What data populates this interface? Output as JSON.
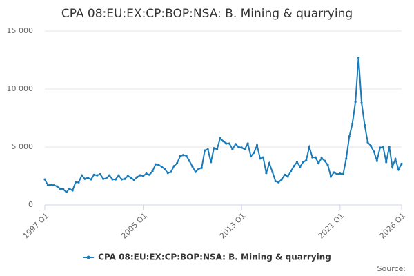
{
  "chart_data": {
    "type": "line",
    "title": "CPA 08:EU:EX:CP:BOP:NSA: B. Mining & quarrying",
    "source": "Source:",
    "categories": [
      "1997 Q1",
      null,
      null,
      null,
      null,
      null,
      null,
      null,
      null,
      null,
      null,
      null,
      null,
      null,
      null,
      null,
      null,
      null,
      null,
      null,
      null,
      null,
      null,
      null,
      null,
      null,
      null,
      null,
      null,
      null,
      null,
      null,
      "2005 Q1",
      null,
      null,
      null,
      null,
      null,
      null,
      null,
      null,
      null,
      null,
      null,
      null,
      null,
      null,
      null,
      null,
      null,
      null,
      null,
      null,
      null,
      null,
      null,
      null,
      null,
      null,
      null,
      null,
      null,
      null,
      null,
      "2013 Q1",
      null,
      null,
      null,
      null,
      null,
      null,
      null,
      null,
      null,
      null,
      null,
      null,
      null,
      null,
      null,
      null,
      null,
      null,
      null,
      null,
      null,
      null,
      null,
      null,
      null,
      null,
      null,
      null,
      null,
      null,
      null,
      "2021 Q1",
      null,
      null,
      null,
      null,
      null,
      null,
      null,
      null,
      null,
      null,
      null,
      null,
      null,
      null,
      null,
      null,
      null,
      null,
      null,
      "2026 Q1"
    ],
    "series": [
      {
        "name": "CPA 08:EU:EX:CP:BOP:NSA: B. Mining & quarrying",
        "color": "#1a7ab8",
        "values": [
          2200,
          1700,
          1750,
          1700,
          1600,
          1400,
          1350,
          1100,
          1400,
          1250,
          1950,
          1950,
          2550,
          2250,
          2350,
          2200,
          2600,
          2550,
          2650,
          2250,
          2300,
          2550,
          2200,
          2200,
          2550,
          2200,
          2250,
          2500,
          2350,
          2150,
          2400,
          2550,
          2500,
          2700,
          2600,
          2900,
          3500,
          3450,
          3300,
          3100,
          2750,
          2850,
          3350,
          3600,
          4200,
          4300,
          4250,
          3800,
          3300,
          2850,
          3100,
          3200,
          4700,
          4800,
          3700,
          4900,
          4800,
          5750,
          5500,
          5300,
          5300,
          4800,
          5250,
          5000,
          4950,
          4800,
          5300,
          4200,
          4500,
          5150,
          4000,
          4100,
          2750,
          3600,
          2850,
          2050,
          1950,
          2200,
          2600,
          2450,
          2900,
          3350,
          3700,
          3300,
          3700,
          3850,
          5000,
          4100,
          4100,
          3600,
          4050,
          3800,
          3450,
          2450,
          2800,
          2650,
          2700,
          2650,
          4000,
          5900,
          7000,
          8900,
          12700,
          8800,
          6900,
          5400,
          5100,
          4600,
          3800,
          4950,
          5000,
          3700,
          5000,
          3300,
          3950,
          3050,
          3550
        ]
      }
    ],
    "ylim": [
      0,
      15000
    ],
    "yticks": [
      0,
      {
        "value": 5000,
        "label": "5 000"
      },
      {
        "value": 10000,
        "label": "10 000"
      },
      {
        "value": 15000,
        "label": "15 000"
      }
    ],
    "grid": true
  }
}
